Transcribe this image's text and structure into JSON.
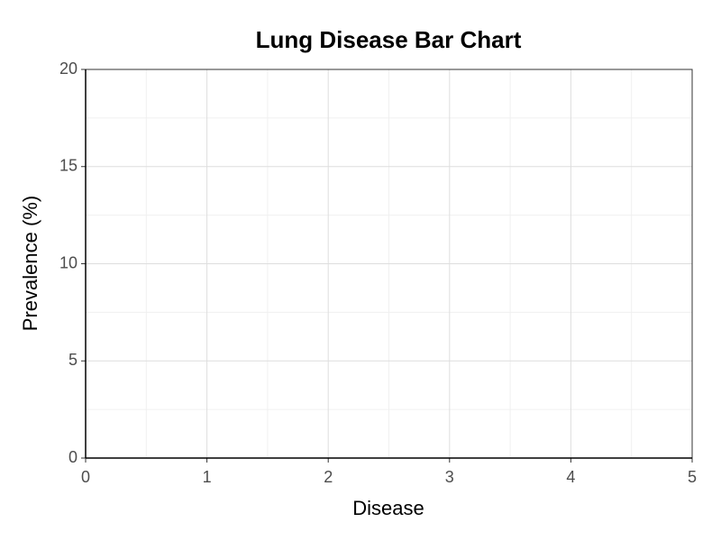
{
  "chart_data": {
    "type": "bar",
    "title": "Lung Disease Bar Chart",
    "x_label": "Disease",
    "y_label": "Prevalence (%)",
    "xlim": [
      0,
      5
    ],
    "xticks": [
      0,
      1,
      2,
      3,
      4,
      5
    ],
    "ylim": [
      0,
      20
    ],
    "yticks": [
      0,
      5,
      10,
      15,
      20
    ],
    "grid": true
  }
}
